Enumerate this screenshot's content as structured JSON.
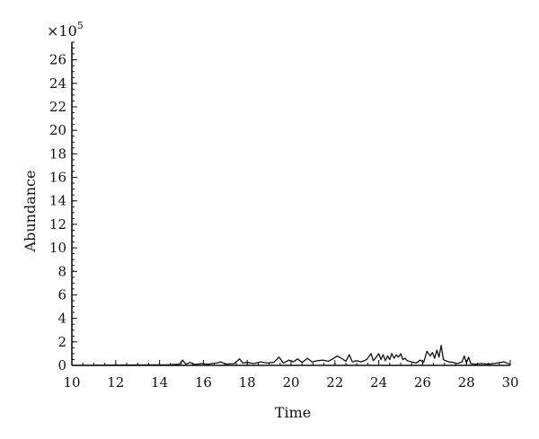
{
  "chart_data": {
    "type": "line",
    "title": "",
    "xlabel": "Time",
    "ylabel": "Abundance",
    "y_multiplier_label": "×10",
    "y_multiplier_exponent": "5",
    "xlim": [
      10,
      30
    ],
    "ylim": [
      0,
      27.5
    ],
    "x_ticks": [
      10,
      12,
      14,
      16,
      18,
      20,
      22,
      24,
      26,
      28,
      30
    ],
    "x_minor_step": 0.5,
    "y_ticks": [
      0,
      2,
      4,
      6,
      8,
      10,
      12,
      14,
      16,
      18,
      20,
      22,
      24,
      26
    ],
    "y_minor_step": 0.5,
    "grid": false,
    "legend": "none",
    "series": [
      {
        "color": "#111111",
        "x": [
          10.0,
          14.5,
          14.9,
          15.05,
          15.2,
          15.4,
          15.6,
          15.9,
          16.2,
          16.6,
          16.8,
          17.0,
          17.4,
          17.65,
          17.8,
          18.0,
          18.3,
          18.6,
          18.9,
          19.2,
          19.45,
          19.65,
          19.9,
          20.1,
          20.3,
          20.5,
          20.75,
          20.95,
          21.2,
          21.45,
          21.7,
          21.9,
          22.1,
          22.3,
          22.5,
          22.65,
          22.8,
          23.0,
          23.2,
          23.45,
          23.65,
          23.75,
          23.85,
          24.0,
          24.1,
          24.2,
          24.3,
          24.4,
          24.5,
          24.6,
          24.7,
          24.8,
          24.9,
          25.0,
          25.1,
          25.2,
          25.3,
          25.5,
          25.7,
          25.9,
          26.05,
          26.2,
          26.35,
          26.45,
          26.55,
          26.65,
          26.75,
          26.85,
          26.95,
          27.05,
          27.2,
          27.4,
          27.6,
          27.8,
          27.9,
          28.0,
          28.1,
          28.2,
          28.4,
          28.7,
          29.0,
          29.4,
          29.7,
          30.0
        ],
        "y": [
          0.0,
          0.05,
          0.1,
          0.45,
          0.1,
          0.25,
          0.08,
          0.15,
          0.1,
          0.2,
          0.3,
          0.1,
          0.15,
          0.55,
          0.2,
          0.25,
          0.15,
          0.3,
          0.2,
          0.25,
          0.7,
          0.2,
          0.45,
          0.3,
          0.55,
          0.25,
          0.6,
          0.3,
          0.4,
          0.45,
          0.35,
          0.55,
          0.8,
          0.6,
          0.35,
          0.9,
          0.3,
          0.4,
          0.3,
          0.5,
          1.0,
          0.4,
          0.6,
          1.0,
          0.5,
          0.9,
          0.4,
          0.8,
          0.5,
          1.0,
          0.6,
          0.9,
          0.7,
          1.0,
          0.5,
          0.6,
          0.4,
          0.3,
          0.2,
          0.45,
          0.25,
          1.2,
          0.8,
          1.1,
          0.6,
          1.3,
          0.7,
          1.7,
          0.5,
          0.4,
          0.3,
          0.25,
          0.15,
          0.3,
          0.8,
          0.2,
          0.7,
          0.15,
          0.1,
          0.15,
          0.1,
          0.2,
          0.3,
          0.1
        ]
      }
    ]
  }
}
